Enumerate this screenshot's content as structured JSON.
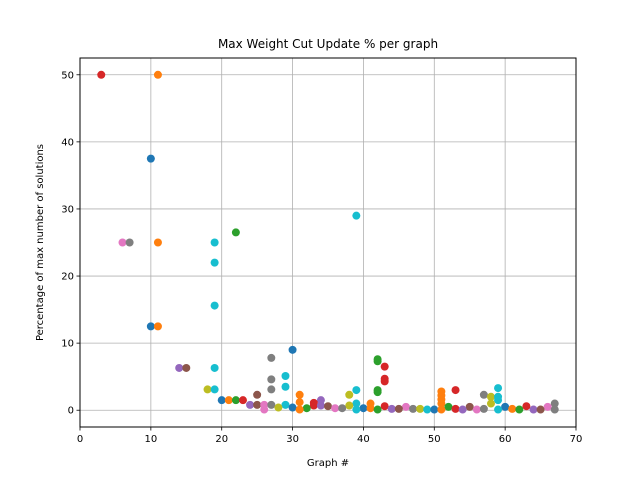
{
  "chart_data": {
    "type": "scatter",
    "title": "Max Weight Cut Update % per graph",
    "xlabel": "Graph #",
    "ylabel": "Percentage of max number of solutions",
    "xlim": [
      0,
      70
    ],
    "ylim": [
      -2.5,
      52.5
    ],
    "xticks": [
      0,
      10,
      20,
      30,
      40,
      50,
      60,
      70
    ],
    "yticks": [
      0,
      10,
      20,
      30,
      40,
      50
    ],
    "grid": true,
    "legend": "none",
    "palette": [
      "#1f77b4",
      "#ff7f0e",
      "#2ca02c",
      "#d62728",
      "#9467bd",
      "#8c564b",
      "#e377c2",
      "#7f7f7f",
      "#bcbd22",
      "#17becf"
    ],
    "points": [
      {
        "x": 3,
        "y": 50,
        "color": "#d62728"
      },
      {
        "x": 11,
        "y": 50,
        "color": "#ff7f0e"
      },
      {
        "x": 10,
        "y": 37.5,
        "color": "#1f77b4"
      },
      {
        "x": 39,
        "y": 29,
        "color": "#17becf"
      },
      {
        "x": 22,
        "y": 26.5,
        "color": "#2ca02c"
      },
      {
        "x": 6,
        "y": 25,
        "color": "#e377c2"
      },
      {
        "x": 7,
        "y": 25,
        "color": "#7f7f7f"
      },
      {
        "x": 11,
        "y": 25,
        "color": "#ff7f0e"
      },
      {
        "x": 19,
        "y": 25,
        "color": "#17becf"
      },
      {
        "x": 19,
        "y": 22,
        "color": "#17becf"
      },
      {
        "x": 19,
        "y": 15.6,
        "color": "#17becf"
      },
      {
        "x": 10,
        "y": 12.5,
        "color": "#1f77b4"
      },
      {
        "x": 11,
        "y": 12.5,
        "color": "#ff7f0e"
      },
      {
        "x": 30,
        "y": 9,
        "color": "#1f77b4"
      },
      {
        "x": 27,
        "y": 7.8,
        "color": "#7f7f7f"
      },
      {
        "x": 42,
        "y": 7.6,
        "color": "#2ca02c"
      },
      {
        "x": 42,
        "y": 7.3,
        "color": "#2ca02c"
      },
      {
        "x": 43,
        "y": 6.5,
        "color": "#d62728"
      },
      {
        "x": 14,
        "y": 6.3,
        "color": "#9467bd"
      },
      {
        "x": 15,
        "y": 6.3,
        "color": "#8c564b"
      },
      {
        "x": 19,
        "y": 6.3,
        "color": "#17becf"
      },
      {
        "x": 29,
        "y": 5.1,
        "color": "#17becf"
      },
      {
        "x": 27,
        "y": 4.6,
        "color": "#7f7f7f"
      },
      {
        "x": 43,
        "y": 4.7,
        "color": "#d62728"
      },
      {
        "x": 43,
        "y": 4.3,
        "color": "#d62728"
      },
      {
        "x": 29,
        "y": 3.5,
        "color": "#17becf"
      },
      {
        "x": 18,
        "y": 3.1,
        "color": "#bcbd22"
      },
      {
        "x": 19,
        "y": 3.1,
        "color": "#17becf"
      },
      {
        "x": 27,
        "y": 3.1,
        "color": "#7f7f7f"
      },
      {
        "x": 39,
        "y": 3.0,
        "color": "#17becf"
      },
      {
        "x": 53,
        "y": 3.0,
        "color": "#d62728"
      },
      {
        "x": 59,
        "y": 3.3,
        "color": "#17becf"
      },
      {
        "x": 42,
        "y": 3.0,
        "color": "#2ca02c"
      },
      {
        "x": 42,
        "y": 2.7,
        "color": "#2ca02c"
      },
      {
        "x": 51,
        "y": 2.8,
        "color": "#ff7f0e"
      },
      {
        "x": 51,
        "y": 2.2,
        "color": "#ff7f0e"
      },
      {
        "x": 25,
        "y": 2.3,
        "color": "#8c564b"
      },
      {
        "x": 31,
        "y": 2.3,
        "color": "#ff7f0e"
      },
      {
        "x": 38,
        "y": 2.3,
        "color": "#bcbd22"
      },
      {
        "x": 57,
        "y": 2.3,
        "color": "#7f7f7f"
      },
      {
        "x": 58,
        "y": 2.0,
        "color": "#bcbd22"
      },
      {
        "x": 59,
        "y": 2.0,
        "color": "#17becf"
      },
      {
        "x": 51,
        "y": 1.6,
        "color": "#ff7f0e"
      },
      {
        "x": 20,
        "y": 1.5,
        "color": "#1f77b4"
      },
      {
        "x": 21,
        "y": 1.5,
        "color": "#ff7f0e"
      },
      {
        "x": 22,
        "y": 1.5,
        "color": "#2ca02c"
      },
      {
        "x": 23,
        "y": 1.5,
        "color": "#d62728"
      },
      {
        "x": 34,
        "y": 1.5,
        "color": "#9467bd"
      },
      {
        "x": 59,
        "y": 1.5,
        "color": "#17becf"
      },
      {
        "x": 31,
        "y": 1.2,
        "color": "#ff7f0e"
      },
      {
        "x": 33,
        "y": 1.1,
        "color": "#d62728"
      },
      {
        "x": 39,
        "y": 1.0,
        "color": "#17becf"
      },
      {
        "x": 41,
        "y": 1.0,
        "color": "#ff7f0e"
      },
      {
        "x": 51,
        "y": 1.0,
        "color": "#ff7f0e"
      },
      {
        "x": 58,
        "y": 1.0,
        "color": "#bcbd22"
      },
      {
        "x": 67,
        "y": 1.0,
        "color": "#7f7f7f"
      },
      {
        "x": 24,
        "y": 0.8,
        "color": "#9467bd"
      },
      {
        "x": 25,
        "y": 0.8,
        "color": "#8c564b"
      },
      {
        "x": 26,
        "y": 0.8,
        "color": "#e377c2"
      },
      {
        "x": 27,
        "y": 0.8,
        "color": "#7f7f7f"
      },
      {
        "x": 29,
        "y": 0.8,
        "color": "#17becf"
      },
      {
        "x": 33,
        "y": 0.7,
        "color": "#d62728"
      },
      {
        "x": 34,
        "y": 0.7,
        "color": "#9467bd"
      },
      {
        "x": 35,
        "y": 0.6,
        "color": "#8c564b"
      },
      {
        "x": 38,
        "y": 0.7,
        "color": "#bcbd22"
      },
      {
        "x": 43,
        "y": 0.6,
        "color": "#d62728"
      },
      {
        "x": 46,
        "y": 0.5,
        "color": "#e377c2"
      },
      {
        "x": 52,
        "y": 0.5,
        "color": "#2ca02c"
      },
      {
        "x": 55,
        "y": 0.5,
        "color": "#8c564b"
      },
      {
        "x": 60,
        "y": 0.5,
        "color": "#1f77b4"
      },
      {
        "x": 63,
        "y": 0.6,
        "color": "#d62728"
      },
      {
        "x": 66,
        "y": 0.5,
        "color": "#e377c2"
      },
      {
        "x": 28,
        "y": 0.4,
        "color": "#bcbd22"
      },
      {
        "x": 30,
        "y": 0.4,
        "color": "#1f77b4"
      },
      {
        "x": 32,
        "y": 0.3,
        "color": "#2ca02c"
      },
      {
        "x": 36,
        "y": 0.3,
        "color": "#e377c2"
      },
      {
        "x": 37,
        "y": 0.3,
        "color": "#7f7f7f"
      },
      {
        "x": 40,
        "y": 0.3,
        "color": "#1f77b4"
      },
      {
        "x": 41,
        "y": 0.3,
        "color": "#ff7f0e"
      },
      {
        "x": 44,
        "y": 0.2,
        "color": "#9467bd"
      },
      {
        "x": 45,
        "y": 0.2,
        "color": "#8c564b"
      },
      {
        "x": 47,
        "y": 0.2,
        "color": "#7f7f7f"
      },
      {
        "x": 48,
        "y": 0.2,
        "color": "#bcbd22"
      },
      {
        "x": 49,
        "y": 0.1,
        "color": "#17becf"
      },
      {
        "x": 50,
        "y": 0.1,
        "color": "#1f77b4"
      },
      {
        "x": 53,
        "y": 0.2,
        "color": "#d62728"
      },
      {
        "x": 54,
        "y": 0.1,
        "color": "#9467bd"
      },
      {
        "x": 56,
        "y": 0.1,
        "color": "#e377c2"
      },
      {
        "x": 57,
        "y": 0.2,
        "color": "#7f7f7f"
      },
      {
        "x": 61,
        "y": 0.2,
        "color": "#ff7f0e"
      },
      {
        "x": 62,
        "y": 0.1,
        "color": "#2ca02c"
      },
      {
        "x": 64,
        "y": 0.1,
        "color": "#9467bd"
      },
      {
        "x": 65,
        "y": 0.1,
        "color": "#8c564b"
      },
      {
        "x": 67,
        "y": 0.1,
        "color": "#7f7f7f"
      },
      {
        "x": 42,
        "y": 0.1,
        "color": "#2ca02c"
      },
      {
        "x": 59,
        "y": 0.1,
        "color": "#17becf"
      },
      {
        "x": 51,
        "y": 0.1,
        "color": "#ff7f0e"
      },
      {
        "x": 39,
        "y": 0.1,
        "color": "#17becf"
      },
      {
        "x": 31,
        "y": 0.1,
        "color": "#ff7f0e"
      },
      {
        "x": 26,
        "y": 0.1,
        "color": "#e377c2"
      }
    ]
  }
}
